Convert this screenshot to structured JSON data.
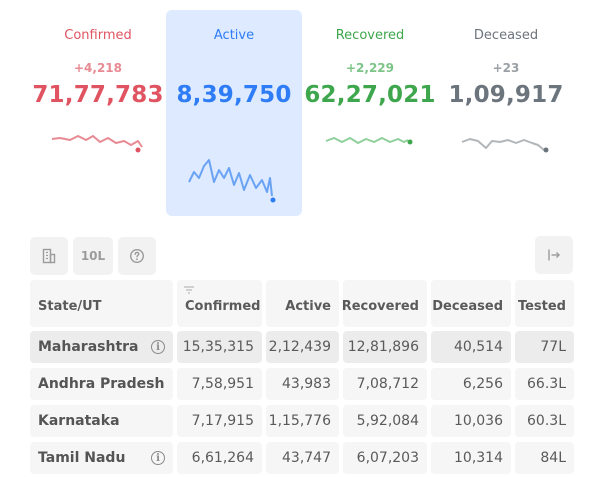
{
  "colors": {
    "confirmed": "#e05462",
    "active": "#2e7cf6",
    "recovered": "#3ea74d",
    "deceased": "#6c757d"
  },
  "summary": [
    {
      "key": "confirmed",
      "label": "Confirmed",
      "delta": "+4,218",
      "total": "71,77,783"
    },
    {
      "key": "active",
      "label": "Active",
      "delta": "",
      "total": "8,39,750"
    },
    {
      "key": "recovered",
      "label": "Recovered",
      "delta": "+2,229",
      "total": "62,27,021"
    },
    {
      "key": "deceased",
      "label": "Deceased",
      "delta": "+23",
      "total": "1,09,917"
    }
  ],
  "toolbar": {
    "building_icon": "building-icon",
    "lakh_label": "10L",
    "help_icon": "help-icon",
    "expand_icon": "arrow-right-bar-icon"
  },
  "table": {
    "headers": {
      "state": "State/UT",
      "confirmed": "Confirmed",
      "active": "Active",
      "recovered": "Recovered",
      "deceased": "Deceased",
      "tested": "Tested"
    },
    "sort_icon": "sort-icon",
    "rows": [
      {
        "state": "Maharashtra",
        "info": true,
        "confirmed": "15,35,315",
        "active": "2,12,439",
        "recovered": "12,81,896",
        "deceased": "40,514",
        "tested": "77L"
      },
      {
        "state": "Andhra Pradesh",
        "info": false,
        "confirmed": "7,58,951",
        "active": "43,983",
        "recovered": "7,08,712",
        "deceased": "6,256",
        "tested": "66.3L"
      },
      {
        "state": "Karnataka",
        "info": false,
        "confirmed": "7,17,915",
        "active": "1,15,776",
        "recovered": "5,92,084",
        "deceased": "10,036",
        "tested": "60.3L"
      },
      {
        "state": "Tamil Nadu",
        "info": true,
        "confirmed": "6,61,264",
        "active": "43,747",
        "recovered": "6,07,203",
        "deceased": "10,314",
        "tested": "84L"
      }
    ]
  }
}
